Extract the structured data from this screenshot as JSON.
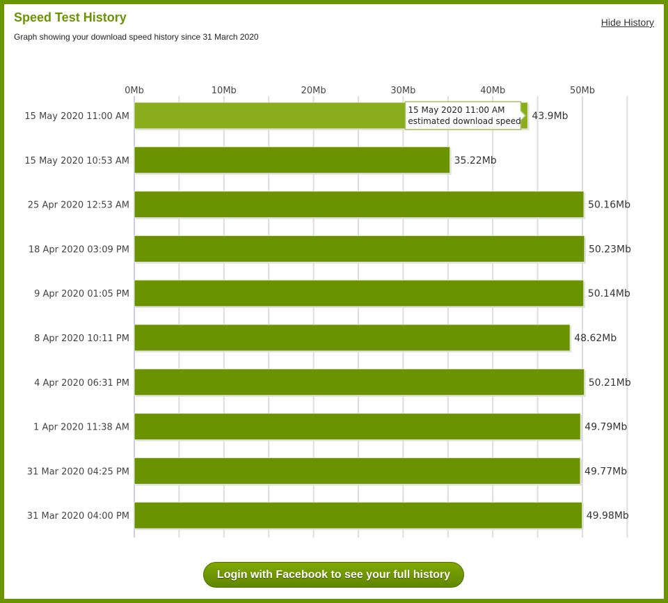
{
  "header": {
    "title": "Speed Test History",
    "subtitle": "Graph showing your download speed history since 31 March 2020",
    "hide_link": "Hide History"
  },
  "button": {
    "label": "Login with Facebook to see your full history"
  },
  "colors": {
    "bar": "#6b9300",
    "highlight": "#8aad1e",
    "border": "#6b9500"
  },
  "chart_data": {
    "type": "bar",
    "orientation": "horizontal",
    "categories": [
      "15 May 2020 11:00 AM",
      "15 May 2020 10:53 AM",
      "25 Apr 2020 12:53 AM",
      "18 Apr 2020 03:09 PM",
      "9 Apr 2020 01:05 PM",
      "8 Apr 2020 10:11 PM",
      "4 Apr 2020 06:31 PM",
      "1 Apr 2020 11:38 AM",
      "31 Mar 2020 04:25 PM",
      "31 Mar 2020 04:00 PM"
    ],
    "values": [
      43.9,
      35.22,
      50.16,
      50.23,
      50.14,
      48.62,
      50.21,
      49.79,
      49.77,
      49.98
    ],
    "value_labels": [
      "43.9Mb",
      "35.22Mb",
      "50.16Mb",
      "50.23Mb",
      "50.14Mb",
      "48.62Mb",
      "50.21Mb",
      "49.79Mb",
      "49.77Mb",
      "49.98Mb"
    ],
    "xlim": [
      0,
      55
    ],
    "ticks": [
      "0Mb",
      "10Mb",
      "20Mb",
      "30Mb",
      "40Mb",
      "50Mb"
    ],
    "highlighted_index": 0,
    "tooltip": {
      "line1": "15 May 2020 11:00 AM",
      "line2": "estimated download speed"
    }
  }
}
